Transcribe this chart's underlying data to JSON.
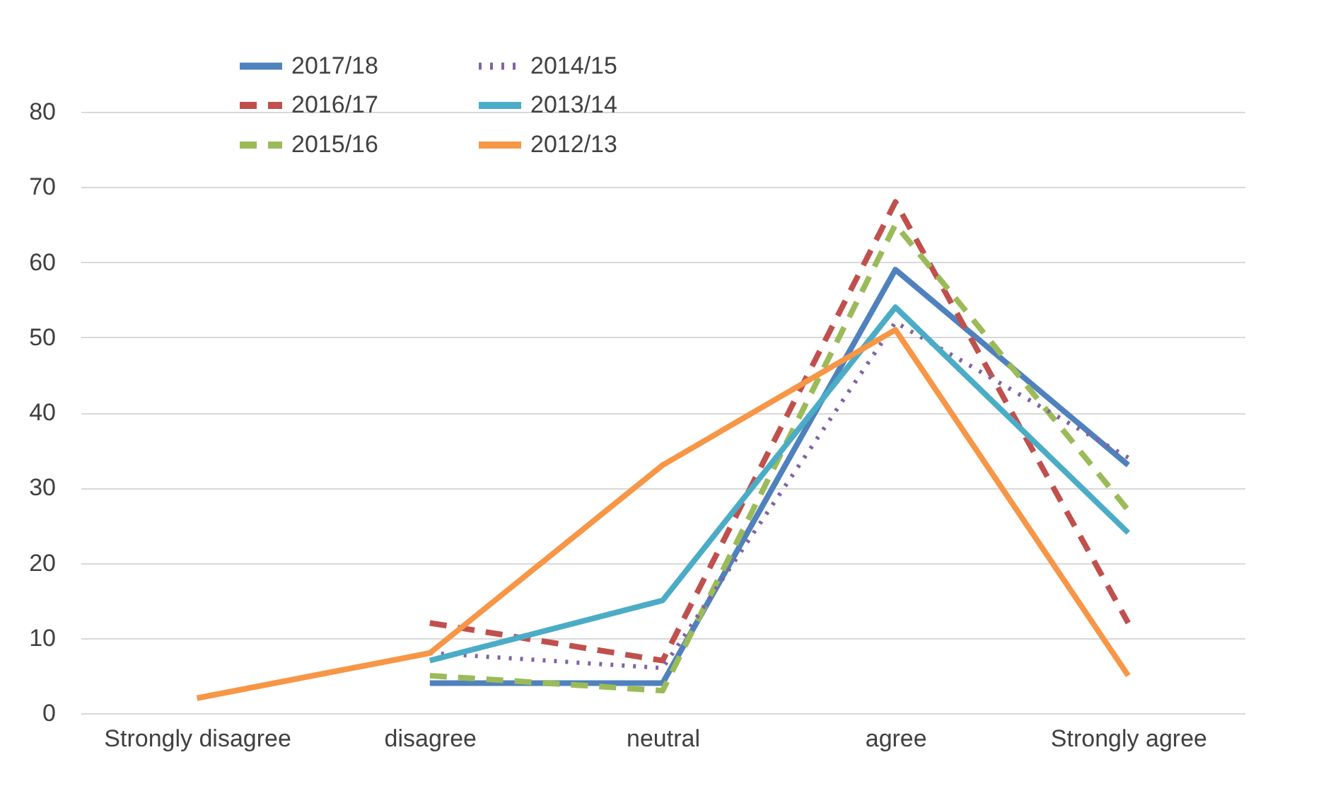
{
  "chart_data": {
    "type": "line",
    "categories": [
      "Strongly disagree",
      "disagree",
      "neutral",
      "agree",
      "Strongly agree"
    ],
    "series": [
      {
        "name": "2017/18",
        "color": "#4f81bd",
        "line_style": "solid",
        "values": [
          null,
          4,
          4,
          59,
          33
        ]
      },
      {
        "name": "2016/17",
        "color": "#c0504d",
        "line_style": "dashed",
        "values": [
          null,
          12,
          7,
          68,
          12
        ]
      },
      {
        "name": "2015/16",
        "color": "#9bbb59",
        "line_style": "dashed",
        "values": [
          null,
          5,
          3,
          65,
          27
        ]
      },
      {
        "name": "2014/15",
        "color": "#8064a2",
        "line_style": "dotted",
        "values": [
          null,
          8,
          6,
          52,
          34
        ]
      },
      {
        "name": "2013/14",
        "color": "#4bacc6",
        "line_style": "solid",
        "values": [
          null,
          7,
          15,
          54,
          24
        ]
      },
      {
        "name": "2012/13",
        "color": "#f79646",
        "line_style": "solid",
        "values": [
          2,
          8,
          33,
          51,
          5
        ]
      }
    ],
    "ylim": [
      0,
      80
    ],
    "yticks": [
      0,
      10,
      20,
      30,
      40,
      50,
      60,
      70,
      80
    ],
    "grid": "y",
    "legend": "top",
    "marker": "none"
  }
}
